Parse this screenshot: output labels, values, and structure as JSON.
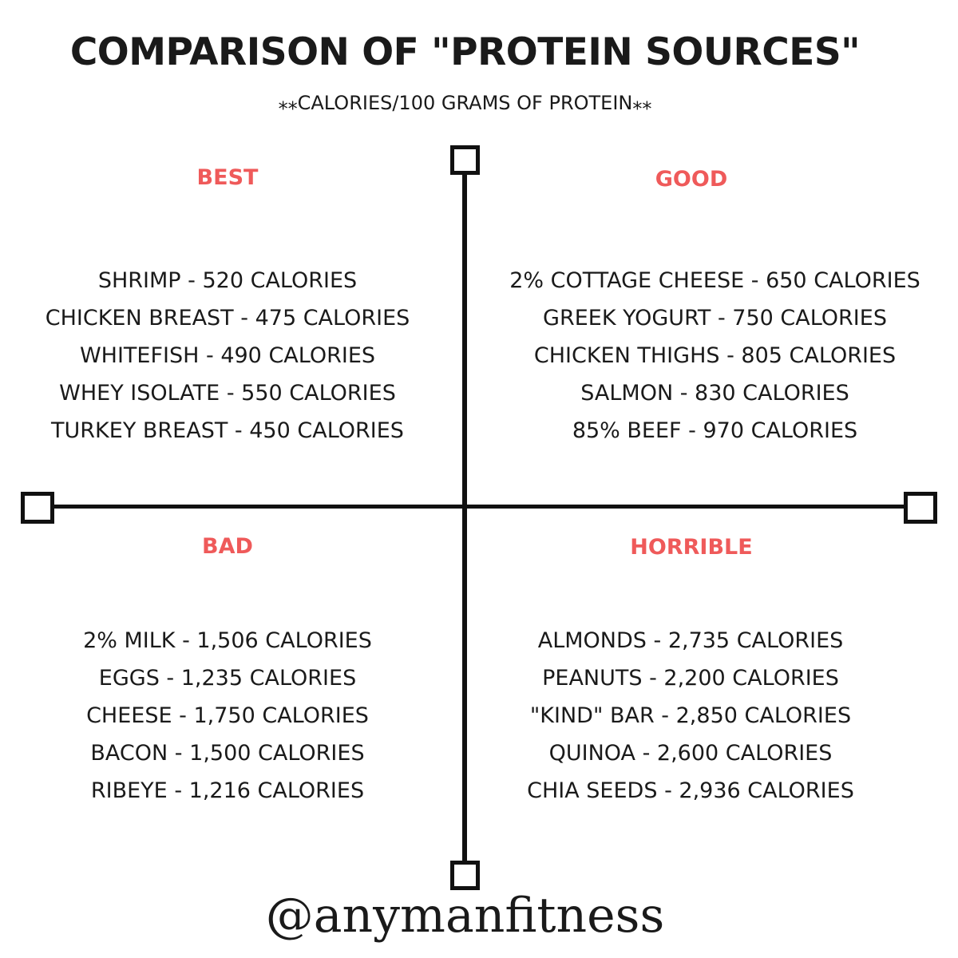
{
  "title": "COMPARISON OF \"PROTEIN SOURCES\"",
  "subtitle": "⁎⁎CALORIES/100 GRAMS OF PROTEIN⁎⁎",
  "colors": {
    "label": "#ef5a5a",
    "text": "#1a1a1a",
    "axis": "#111111"
  },
  "quadrants": {
    "best": {
      "label": "BEST",
      "items": [
        "SHRIMP - 520 CALORIES",
        "CHICKEN BREAST - 475 CALORIES",
        "WHITEFISH - 490 CALORIES",
        "WHEY ISOLATE - 550 CALORIES",
        "TURKEY BREAST - 450 CALORIES"
      ]
    },
    "good": {
      "label": "GOOD",
      "items": [
        "2% COTTAGE CHEESE - 650 CALORIES",
        "GREEK YOGURT - 750 CALORIES",
        "CHICKEN THIGHS - 805 CALORIES",
        "SALMON - 830 CALORIES",
        "85% BEEF - 970 CALORIES"
      ]
    },
    "bad": {
      "label": "BAD",
      "items": [
        "2% MILK - 1,506 CALORIES",
        "EGGS - 1,235 CALORIES",
        "CHEESE - 1,750 CALORIES",
        "BACON - 1,500 CALORIES",
        "RIBEYE - 1,216 CALORIES"
      ]
    },
    "horrible": {
      "label": "HORRIBLE",
      "items": [
        "ALMONDS - 2,735 CALORIES",
        "PEANUTS - 2,200 CALORIES",
        "\"KIND\" BAR - 2,850 CALORIES",
        "QUINOA - 2,600 CALORIES",
        "CHIA SEEDS - 2,936 CALORIES"
      ]
    }
  },
  "handle": "@anymanfitness"
}
